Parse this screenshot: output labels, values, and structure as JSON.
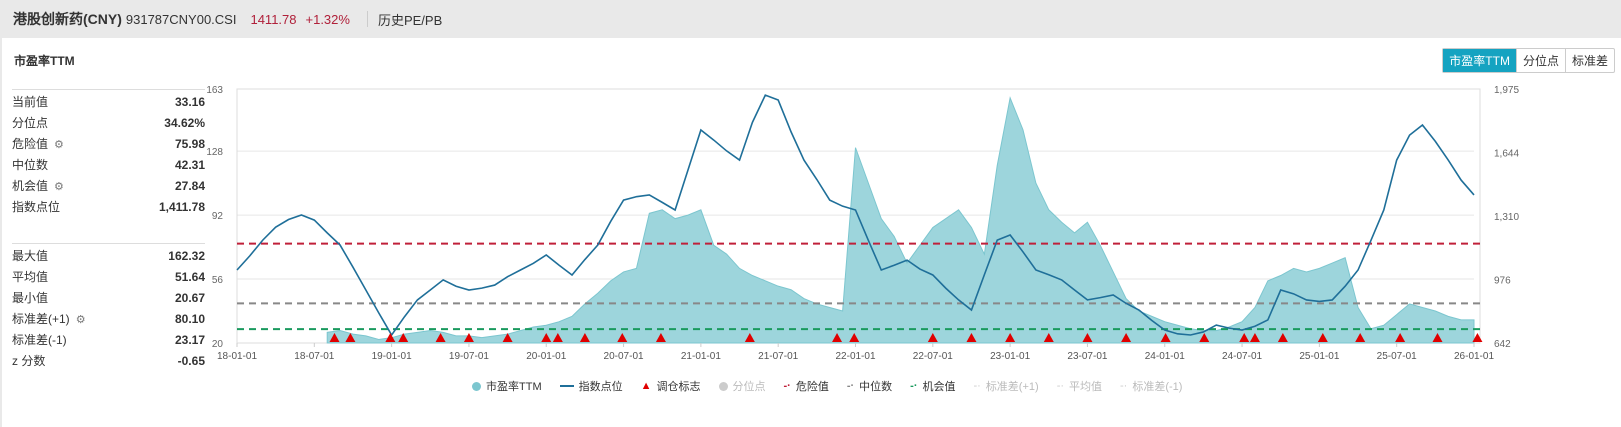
{
  "header": {
    "name": "港股创新药(CNY)",
    "code": "931787CNY00.CSI",
    "price": "1411.78",
    "change": "+1.32%",
    "link": "历史PE/PB"
  },
  "panel": {
    "title": "市盈率TTM",
    "buttons": [
      "市盈率TTM",
      "分位点",
      "标准差"
    ]
  },
  "stats_top": [
    {
      "label": "当前值",
      "value": "33.16",
      "gear": false
    },
    {
      "label": "分位点",
      "value": "34.62%",
      "gear": false
    },
    {
      "label": "危险值",
      "value": "75.98",
      "gear": true
    },
    {
      "label": "中位数",
      "value": "42.31",
      "gear": false
    },
    {
      "label": "机会值",
      "value": "27.84",
      "gear": true
    },
    {
      "label": "指数点位",
      "value": "1,411.78",
      "gear": false
    }
  ],
  "stats_bottom": [
    {
      "label": "最大值",
      "value": "162.32",
      "gear": false
    },
    {
      "label": "平均值",
      "value": "51.64",
      "gear": false
    },
    {
      "label": "最小值",
      "value": "20.67",
      "gear": false
    },
    {
      "label": "标准差(+1)",
      "value": "80.10",
      "gear": true
    },
    {
      "label": "标准差(-1)",
      "value": "23.17",
      "gear": false
    },
    {
      "label": "z 分数",
      "value": "-0.65",
      "gear": false
    }
  ],
  "chart_data": {
    "type": "area",
    "x_ticks": [
      "18-01-01",
      "18-07-01",
      "19-01-01",
      "19-07-01",
      "20-01-01",
      "20-07-01",
      "21-01-01",
      "21-07-01",
      "22-01-01",
      "22-07-01",
      "23-01-01",
      "23-07-01",
      "24-01-01",
      "24-07-01",
      "25-01-01",
      "25-07-01",
      "26-01-01"
    ],
    "y_left": {
      "ticks": [
        20,
        56,
        92,
        128,
        163
      ],
      "range": [
        20,
        163
      ]
    },
    "y_right": {
      "ticks": [
        "642",
        "976",
        "1,310",
        "1,644",
        "1,975"
      ],
      "range": [
        642,
        1975
      ]
    },
    "start_month": "2018-01",
    "pe_start_offset": 7,
    "pe": [
      26,
      27,
      25,
      24,
      22,
      23,
      25,
      26,
      27,
      26,
      24,
      24,
      23,
      24,
      25,
      27,
      29,
      30,
      32,
      35,
      42,
      48,
      55,
      60,
      62,
      93,
      95,
      90,
      92,
      95,
      75,
      70,
      62,
      58,
      55,
      52,
      50,
      45,
      42,
      40,
      38,
      130,
      110,
      90,
      80,
      65,
      75,
      85,
      90,
      95,
      85,
      70,
      120,
      158,
      140,
      110,
      95,
      88,
      82,
      88,
      75,
      60,
      45,
      38,
      35,
      32,
      30,
      28,
      27,
      27,
      29,
      32,
      40,
      55,
      58,
      62,
      60,
      62,
      65,
      68,
      40,
      28,
      30,
      36,
      42,
      40,
      38,
      35,
      33,
      33
    ],
    "index": [
      1025,
      1100,
      1182,
      1250,
      1290,
      1314,
      1287,
      1220,
      1156,
      1040,
      920,
      800,
      684,
      780,
      868,
      920,
      973,
      940,
      920,
      930,
      946,
      990,
      1025,
      1060,
      1104,
      1050,
      999,
      1080,
      1156,
      1280,
      1392,
      1410,
      1419,
      1380,
      1340,
      1550,
      1760,
      1707,
      1650,
      1602,
      1800,
      1943,
      1917,
      1750,
      1602,
      1500,
      1392,
      1360,
      1340,
      1180,
      1025,
      1050,
      1077,
      1030,
      999,
      930,
      868,
      815,
      1000,
      1182,
      1209,
      1120,
      1025,
      1000,
      973,
      920,
      868,
      880,
      894,
      850,
      815,
      760,
      710,
      690,
      684,
      700,
      736,
      720,
      710,
      730,
      763,
      920,
      900,
      868,
      860,
      868,
      940,
      1025,
      1180,
      1340,
      1602,
      1733,
      1786,
      1700,
      1602,
      1497,
      1419
    ],
    "markers": [
      "2018-08-18",
      "2018-09-25",
      "2018-12-28",
      "2019-01-28",
      "2019-04-25",
      "2019-07-01",
      "2019-10-01",
      "2020-01-01",
      "2020-01-28",
      "2020-04-01",
      "2020-06-28",
      "2020-09-28",
      "2021-04-25",
      "2021-11-18",
      "2021-12-28",
      "2022-07-01",
      "2022-10-01",
      "2023-01-01",
      "2023-04-01",
      "2023-07-01",
      "2023-10-01",
      "2024-01-03",
      "2024-04-03",
      "2024-07-06",
      "2024-08-01",
      "2024-10-06",
      "2025-01-09",
      "2025-04-06",
      "2025-07-09",
      "2025-10-06",
      "2026-01-09"
    ],
    "lines": {
      "danger": 75.98,
      "median": 42.31,
      "opportunity": 27.84
    },
    "legend": [
      "市盈率TTM",
      "指数点位",
      "调仓标志",
      "分位点",
      "危险值",
      "中位数",
      "机会值",
      "标准差(+1)",
      "平均值",
      "标准差(-1)"
    ],
    "colors": {
      "pe": "#9dd5dc",
      "pe_edge": "#7cc6cf",
      "index": "#1f6f99",
      "marker": "#e00000",
      "danger": "#c0203a",
      "median": "#888888",
      "opportunity": "#1a9a5e",
      "disabled": "#cccccc"
    }
  }
}
